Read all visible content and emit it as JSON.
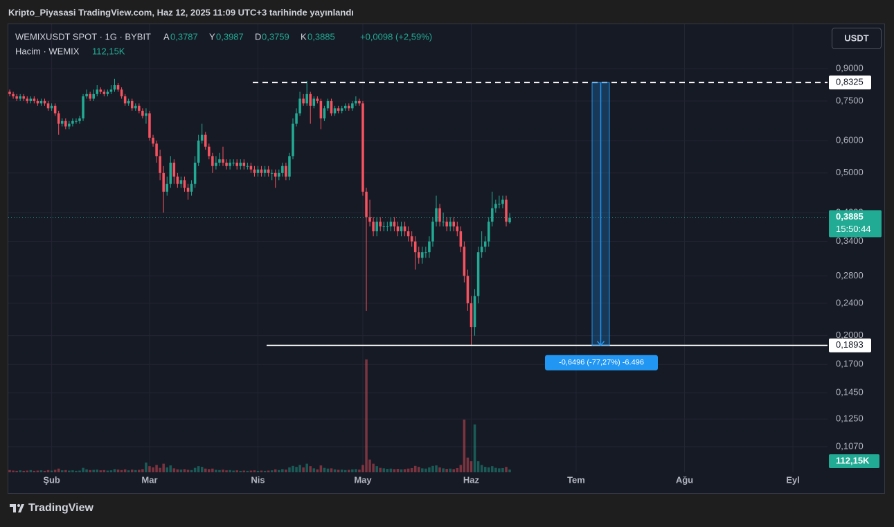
{
  "published": "Kripto_Piyasasi TradingView.com, Haz 12, 2025 11:09 UTC+3 tarihinde yayınlandı",
  "brand": "TradingView",
  "currency_button": "USDT",
  "chart_data": {
    "type": "candlestick",
    "title": "WEMIXUSDT SPOT · 1G · BYBIT",
    "ohlc_header": [
      {
        "key": "A",
        "value": "0,3787"
      },
      {
        "key": "Y",
        "value": "0,3987"
      },
      {
        "key": "D",
        "value": "0,3759"
      },
      {
        "key": "K",
        "value": "0,3885"
      }
    ],
    "change": "+0,0098 (+2,59%)",
    "volume_title": "Hacim · WEMIX",
    "volume_label": "112,15K",
    "last_price": {
      "label": "0,3885",
      "countdown": "15:50:44"
    },
    "up_color": "#22ab94",
    "down_color": "#f7525f",
    "log_scale": true,
    "grid": true,
    "xlim": [
      -0.4,
      233.9
    ],
    "xticks": [
      {
        "value": 12,
        "label": "Şub"
      },
      {
        "value": 40,
        "label": "Mar"
      },
      {
        "value": 71,
        "label": "Nis"
      },
      {
        "value": 101,
        "label": "May"
      },
      {
        "value": 132,
        "label": "Haz"
      },
      {
        "value": 162,
        "label": "Tem"
      },
      {
        "value": 193,
        "label": "Ağu"
      },
      {
        "value": 224,
        "label": "Eyl"
      }
    ],
    "ylim": [
      0.0926,
      1.156
    ],
    "yticks": [
      {
        "value": 0.9,
        "label": "0,9000"
      },
      {
        "value": 0.75,
        "label": "0,7500"
      },
      {
        "value": 0.6,
        "label": "0,6000"
      },
      {
        "value": 0.5,
        "label": "0,5000"
      },
      {
        "value": 0.4,
        "label": "0,4000"
      },
      {
        "value": 0.34,
        "label": "0,3400"
      },
      {
        "value": 0.28,
        "label": "0,2800"
      },
      {
        "value": 0.24,
        "label": "0,2400"
      },
      {
        "value": 0.2,
        "label": "0,2000"
      },
      {
        "value": 0.17,
        "label": "0,1700"
      },
      {
        "value": 0.145,
        "label": "0,1450"
      },
      {
        "value": 0.125,
        "label": "0,1250"
      },
      {
        "value": 0.107,
        "label": "0,1070"
      }
    ],
    "vlim": [
      0,
      4800000
    ],
    "levels": [
      {
        "value": 0.8325,
        "label": "0,8325",
        "style": "dashed"
      },
      {
        "value": 0.1893,
        "label": "0,1893",
        "style": "solid"
      }
    ],
    "measure": {
      "label": "-0,6496 (-77,27%) -6.496",
      "color": "#2196f3"
    },
    "open": [
      0.79,
      0.78,
      0.77,
      0.76,
      0.77,
      0.76,
      0.75,
      0.76,
      0.75,
      0.74,
      0.75,
      0.74,
      0.72,
      0.73,
      0.7,
      0.66,
      0.67,
      0.65,
      0.66,
      0.67,
      0.67,
      0.68,
      0.77,
      0.78,
      0.76,
      0.78,
      0.8,
      0.79,
      0.78,
      0.79,
      0.8,
      0.82,
      0.8,
      0.77,
      0.74,
      0.75,
      0.72,
      0.73,
      0.71,
      0.69,
      0.7,
      0.61,
      0.59,
      0.55,
      0.5,
      0.45,
      0.47,
      0.53,
      0.49,
      0.47,
      0.48,
      0.46,
      0.45,
      0.47,
      0.53,
      0.6,
      0.62,
      0.58,
      0.55,
      0.52,
      0.53,
      0.54,
      0.53,
      0.52,
      0.53,
      0.53,
      0.52,
      0.53,
      0.52,
      0.52,
      0.51,
      0.5,
      0.51,
      0.5,
      0.51,
      0.5,
      0.5,
      0.49,
      0.5,
      0.52,
      0.49,
      0.55,
      0.66,
      0.7,
      0.76,
      0.74,
      0.78,
      0.73,
      0.76,
      0.75,
      0.68,
      0.72,
      0.75,
      0.7,
      0.72,
      0.71,
      0.72,
      0.73,
      0.72,
      0.74,
      0.75,
      0.74,
      0.45,
      0.39,
      0.38,
      0.36,
      0.38,
      0.37,
      0.37,
      0.37,
      0.38,
      0.37,
      0.36,
      0.37,
      0.36,
      0.35,
      0.34,
      0.32,
      0.31,
      0.32,
      0.32,
      0.34,
      0.38,
      0.41,
      0.38,
      0.38,
      0.37,
      0.38,
      0.37,
      0.36,
      0.33,
      0.28,
      0.24,
      0.21,
      0.25,
      0.32,
      0.33,
      0.34,
      0.38,
      0.41,
      0.42,
      0.42,
      0.43,
      0.3787
    ],
    "high": [
      0.8,
      0.79,
      0.78,
      0.78,
      0.78,
      0.77,
      0.77,
      0.77,
      0.76,
      0.76,
      0.76,
      0.75,
      0.74,
      0.74,
      0.71,
      0.68,
      0.68,
      0.67,
      0.68,
      0.68,
      0.69,
      0.78,
      0.8,
      0.79,
      0.8,
      0.82,
      0.81,
      0.8,
      0.8,
      0.82,
      0.85,
      0.83,
      0.81,
      0.78,
      0.76,
      0.76,
      0.74,
      0.74,
      0.72,
      0.72,
      0.71,
      0.62,
      0.6,
      0.57,
      0.52,
      0.49,
      0.55,
      0.54,
      0.5,
      0.49,
      0.49,
      0.47,
      0.48,
      0.55,
      0.62,
      0.66,
      0.63,
      0.59,
      0.56,
      0.55,
      0.56,
      0.58,
      0.54,
      0.54,
      0.54,
      0.54,
      0.54,
      0.54,
      0.53,
      0.53,
      0.52,
      0.52,
      0.52,
      0.52,
      0.52,
      0.51,
      0.51,
      0.51,
      0.53,
      0.53,
      0.56,
      0.68,
      0.72,
      0.79,
      0.78,
      0.84,
      0.79,
      0.77,
      0.77,
      0.76,
      0.73,
      0.76,
      0.76,
      0.73,
      0.73,
      0.73,
      0.74,
      0.74,
      0.75,
      0.77,
      0.76,
      0.75,
      0.46,
      0.43,
      0.39,
      0.39,
      0.39,
      0.38,
      0.38,
      0.39,
      0.39,
      0.38,
      0.38,
      0.38,
      0.37,
      0.36,
      0.35,
      0.33,
      0.33,
      0.33,
      0.35,
      0.39,
      0.44,
      0.42,
      0.4,
      0.39,
      0.39,
      0.39,
      0.38,
      0.37,
      0.34,
      0.29,
      0.25,
      0.26,
      0.33,
      0.36,
      0.35,
      0.39,
      0.45,
      0.43,
      0.44,
      0.44,
      0.44,
      0.3987
    ],
    "low": [
      0.77,
      0.76,
      0.75,
      0.75,
      0.75,
      0.74,
      0.74,
      0.74,
      0.73,
      0.73,
      0.73,
      0.71,
      0.71,
      0.69,
      0.62,
      0.65,
      0.64,
      0.64,
      0.65,
      0.66,
      0.66,
      0.67,
      0.76,
      0.75,
      0.75,
      0.77,
      0.78,
      0.77,
      0.77,
      0.78,
      0.79,
      0.79,
      0.76,
      0.73,
      0.73,
      0.71,
      0.71,
      0.7,
      0.68,
      0.66,
      0.6,
      0.58,
      0.53,
      0.48,
      0.4,
      0.44,
      0.46,
      0.47,
      0.46,
      0.46,
      0.45,
      0.43,
      0.44,
      0.46,
      0.52,
      0.59,
      0.57,
      0.54,
      0.5,
      0.51,
      0.52,
      0.52,
      0.51,
      0.51,
      0.52,
      0.51,
      0.51,
      0.51,
      0.51,
      0.5,
      0.49,
      0.49,
      0.49,
      0.49,
      0.49,
      0.48,
      0.46,
      0.48,
      0.49,
      0.48,
      0.48,
      0.54,
      0.65,
      0.69,
      0.73,
      0.73,
      0.66,
      0.72,
      0.74,
      0.64,
      0.67,
      0.71,
      0.69,
      0.69,
      0.7,
      0.7,
      0.71,
      0.71,
      0.71,
      0.73,
      0.73,
      0.44,
      0.23,
      0.37,
      0.35,
      0.35,
      0.36,
      0.36,
      0.36,
      0.36,
      0.36,
      0.35,
      0.35,
      0.35,
      0.34,
      0.33,
      0.29,
      0.3,
      0.3,
      0.31,
      0.31,
      0.33,
      0.37,
      0.37,
      0.37,
      0.36,
      0.36,
      0.36,
      0.35,
      0.32,
      0.27,
      0.23,
      0.1893,
      0.2,
      0.24,
      0.31,
      0.32,
      0.33,
      0.37,
      0.4,
      0.41,
      0.41,
      0.37,
      0.3759
    ],
    "close": [
      0.78,
      0.77,
      0.76,
      0.77,
      0.76,
      0.75,
      0.76,
      0.75,
      0.74,
      0.75,
      0.74,
      0.72,
      0.73,
      0.7,
      0.66,
      0.67,
      0.65,
      0.66,
      0.67,
      0.67,
      0.68,
      0.77,
      0.78,
      0.76,
      0.78,
      0.8,
      0.79,
      0.78,
      0.79,
      0.8,
      0.82,
      0.8,
      0.77,
      0.74,
      0.75,
      0.72,
      0.73,
      0.71,
      0.69,
      0.7,
      0.61,
      0.59,
      0.55,
      0.5,
      0.45,
      0.47,
      0.53,
      0.49,
      0.47,
      0.48,
      0.46,
      0.45,
      0.47,
      0.53,
      0.6,
      0.62,
      0.58,
      0.55,
      0.52,
      0.53,
      0.54,
      0.53,
      0.52,
      0.53,
      0.53,
      0.52,
      0.53,
      0.52,
      0.52,
      0.51,
      0.5,
      0.51,
      0.5,
      0.51,
      0.5,
      0.5,
      0.49,
      0.5,
      0.52,
      0.49,
      0.55,
      0.66,
      0.7,
      0.76,
      0.74,
      0.78,
      0.73,
      0.76,
      0.75,
      0.68,
      0.72,
      0.75,
      0.7,
      0.72,
      0.71,
      0.72,
      0.73,
      0.72,
      0.74,
      0.75,
      0.74,
      0.45,
      0.39,
      0.38,
      0.36,
      0.38,
      0.37,
      0.37,
      0.37,
      0.38,
      0.37,
      0.36,
      0.37,
      0.36,
      0.35,
      0.34,
      0.32,
      0.31,
      0.32,
      0.32,
      0.34,
      0.38,
      0.41,
      0.38,
      0.38,
      0.37,
      0.38,
      0.37,
      0.36,
      0.33,
      0.28,
      0.24,
      0.21,
      0.25,
      0.32,
      0.33,
      0.34,
      0.38,
      0.41,
      0.42,
      0.42,
      0.43,
      0.38,
      0.3885
    ],
    "volume": [
      90000,
      70000,
      60000,
      80000,
      60000,
      70000,
      90000,
      60000,
      70000,
      80000,
      60000,
      90000,
      70000,
      100000,
      150000,
      80000,
      90000,
      70000,
      80000,
      60000,
      70000,
      180000,
      120000,
      90000,
      100000,
      110000,
      80000,
      90000,
      70000,
      80000,
      130000,
      110000,
      90000,
      120000,
      80000,
      110000,
      90000,
      100000,
      130000,
      400000,
      250000,
      200000,
      300000,
      180000,
      350000,
      200000,
      280000,
      160000,
      120000,
      110000,
      130000,
      100000,
      90000,
      180000,
      250000,
      220000,
      150000,
      130000,
      150000,
      100000,
      90000,
      110000,
      80000,
      90000,
      70000,
      80000,
      60000,
      70000,
      60000,
      70000,
      80000,
      60000,
      70000,
      60000,
      70000,
      80000,
      120000,
      90000,
      130000,
      110000,
      200000,
      260000,
      220000,
      300000,
      200000,
      350000,
      250000,
      160000,
      120000,
      280000,
      180000,
      150000,
      160000,
      120000,
      100000,
      110000,
      90000,
      100000,
      120000,
      130000,
      110000,
      300000,
      4600000,
      520000,
      350000,
      250000,
      180000,
      160000,
      140000,
      150000,
      130000,
      140000,
      120000,
      130000,
      150000,
      170000,
      260000,
      220000,
      160000,
      150000,
      200000,
      260000,
      280000,
      200000,
      160000,
      140000,
      150000,
      130000,
      170000,
      300000,
      2150000,
      600000,
      450000,
      1950000,
      450000,
      300000,
      220000,
      200000,
      250000,
      180000,
      160000,
      170000,
      220000,
      112150
    ]
  }
}
